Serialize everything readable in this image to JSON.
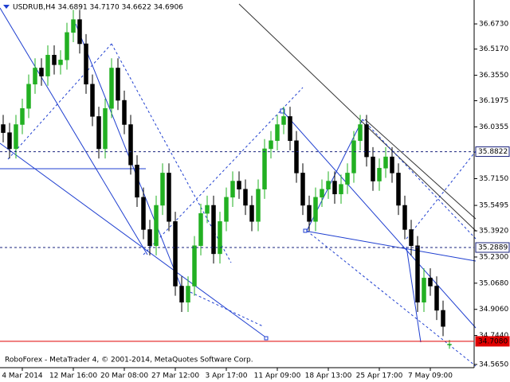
{
  "chart_data": {
    "type": "candlestick",
    "title": "USDRUB,H4  34.6891 34.7170 34.6622 34.6906",
    "footer": "RoboForex - MetaTrader 4, © 2001-2014, MetaQuotes Software Corp.",
    "up_color": "#22b022",
    "down_color": "#000000",
    "open": [
      36.05,
      36.0,
      35.9,
      36.05,
      36.15,
      36.3,
      36.4,
      36.35,
      36.48,
      36.42,
      36.45,
      36.62,
      36.7,
      36.55,
      36.3,
      36.1,
      35.9,
      36.15,
      36.4,
      36.2,
      36.05,
      35.8,
      35.6,
      35.4,
      35.3,
      35.55,
      35.75,
      35.45,
      35.05,
      34.95,
      35.05,
      35.3,
      35.5,
      35.55,
      35.25,
      35.45,
      35.6,
      35.7,
      35.65,
      35.55,
      35.45,
      35.65,
      35.9,
      35.95,
      36.05,
      36.1,
      35.95,
      35.75,
      35.55,
      35.45,
      35.6,
      35.65,
      35.7,
      35.62,
      35.68,
      35.75,
      35.95,
      36.05,
      35.85,
      35.7,
      35.78,
      35.85,
      35.75,
      35.55,
      35.4,
      35.3,
      34.95,
      35.1,
      35.05,
      34.9,
      34.6891
    ],
    "high": [
      36.11,
      36.06,
      36.11,
      36.21,
      36.36,
      36.46,
      36.46,
      36.54,
      36.54,
      36.51,
      36.68,
      36.76,
      36.76,
      36.61,
      36.36,
      36.16,
      36.21,
      36.46,
      36.46,
      36.26,
      36.11,
      35.86,
      35.66,
      35.46,
      35.61,
      35.81,
      35.81,
      35.51,
      35.11,
      35.11,
      35.36,
      35.56,
      35.61,
      35.61,
      35.51,
      35.66,
      35.76,
      35.76,
      35.71,
      35.61,
      35.71,
      35.96,
      36.01,
      36.11,
      36.16,
      36.16,
      36.01,
      35.81,
      35.61,
      35.66,
      35.71,
      35.76,
      35.76,
      35.74,
      35.81,
      36.01,
      36.11,
      36.11,
      35.91,
      35.84,
      35.91,
      35.91,
      35.81,
      35.61,
      35.46,
      35.36,
      35.16,
      35.16,
      35.11,
      34.96,
      34.717
    ],
    "low": [
      35.94,
      35.84,
      35.84,
      35.99,
      36.09,
      36.24,
      36.29,
      36.29,
      36.36,
      36.36,
      36.39,
      36.56,
      36.49,
      36.24,
      36.04,
      35.84,
      35.84,
      36.09,
      36.14,
      35.99,
      35.74,
      35.54,
      35.34,
      35.24,
      35.24,
      35.49,
      35.39,
      34.99,
      34.89,
      34.89,
      34.99,
      35.24,
      35.44,
      35.19,
      35.19,
      35.39,
      35.54,
      35.59,
      35.49,
      35.39,
      35.39,
      35.59,
      35.84,
      35.89,
      35.99,
      35.89,
      35.69,
      35.49,
      35.39,
      35.39,
      35.54,
      35.59,
      35.56,
      35.56,
      35.62,
      35.69,
      35.89,
      35.79,
      35.64,
      35.64,
      35.72,
      35.69,
      35.49,
      35.34,
      35.24,
      34.89,
      34.89,
      34.99,
      34.84,
      34.74,
      34.6622
    ],
    "close": [
      36.0,
      35.9,
      36.05,
      36.15,
      36.3,
      36.4,
      36.35,
      36.48,
      36.42,
      36.45,
      36.62,
      36.7,
      36.55,
      36.3,
      36.1,
      35.9,
      36.15,
      36.4,
      36.2,
      36.05,
      35.8,
      35.6,
      35.4,
      35.3,
      35.55,
      35.75,
      35.45,
      35.05,
      34.95,
      35.05,
      35.3,
      35.5,
      35.55,
      35.25,
      35.45,
      35.6,
      35.7,
      35.65,
      35.55,
      35.45,
      35.65,
      35.9,
      35.95,
      36.05,
      36.1,
      35.95,
      35.75,
      35.55,
      35.45,
      35.6,
      35.65,
      35.7,
      35.62,
      35.68,
      35.75,
      35.95,
      36.05,
      35.85,
      35.7,
      35.78,
      35.85,
      35.75,
      35.55,
      35.4,
      35.3,
      34.95,
      35.1,
      35.05,
      34.9,
      34.8,
      34.6906
    ],
    "xticks": [
      {
        "value": 3,
        "label": "4 Mar 2014"
      },
      {
        "value": 11,
        "label": "12 Mar 16:00"
      },
      {
        "value": 19,
        "label": "20 Mar 08:00"
      },
      {
        "value": 27,
        "label": "27 Mar 12:00"
      },
      {
        "value": 35,
        "label": "3 Apr 17:00"
      },
      {
        "value": 43,
        "label": "11 Apr 09:00"
      },
      {
        "value": 51,
        "label": "18 Apr 13:00"
      },
      {
        "value": 59,
        "label": "25 Apr 17:00"
      },
      {
        "value": 67,
        "label": "7 May 09:00"
      }
    ],
    "ylim": [
      34.545,
      36.821
    ],
    "yticks": [
      {
        "value": 36.673,
        "label": "36.6730"
      },
      {
        "value": 36.517,
        "label": "36.5170"
      },
      {
        "value": 36.355,
        "label": "36.3550"
      },
      {
        "value": 36.1975,
        "label": "36.1975"
      },
      {
        "value": 36.0355,
        "label": "36.0355"
      },
      {
        "value": 35.715,
        "label": "35.7150"
      },
      {
        "value": 35.5495,
        "label": "35.5495"
      },
      {
        "value": 35.392,
        "label": "35.3920"
      },
      {
        "value": 35.23,
        "label": "35.2300"
      },
      {
        "value": 35.068,
        "label": "35.0680"
      },
      {
        "value": 34.906,
        "label": "34.9060"
      },
      {
        "value": 34.744,
        "label": "34.7440"
      },
      {
        "value": 34.565,
        "label": "34.5650"
      }
    ],
    "levels": [
      {
        "value": 35.8822,
        "label": "35.8822",
        "color": "#1a237e",
        "style": "dashed"
      },
      {
        "value": 35.2889,
        "label": "35.2889",
        "color": "#1a237e",
        "style": "dashed"
      },
      {
        "value": 34.708,
        "label": "34.7080",
        "color": "#e00000",
        "style": "solid"
      }
    ]
  }
}
